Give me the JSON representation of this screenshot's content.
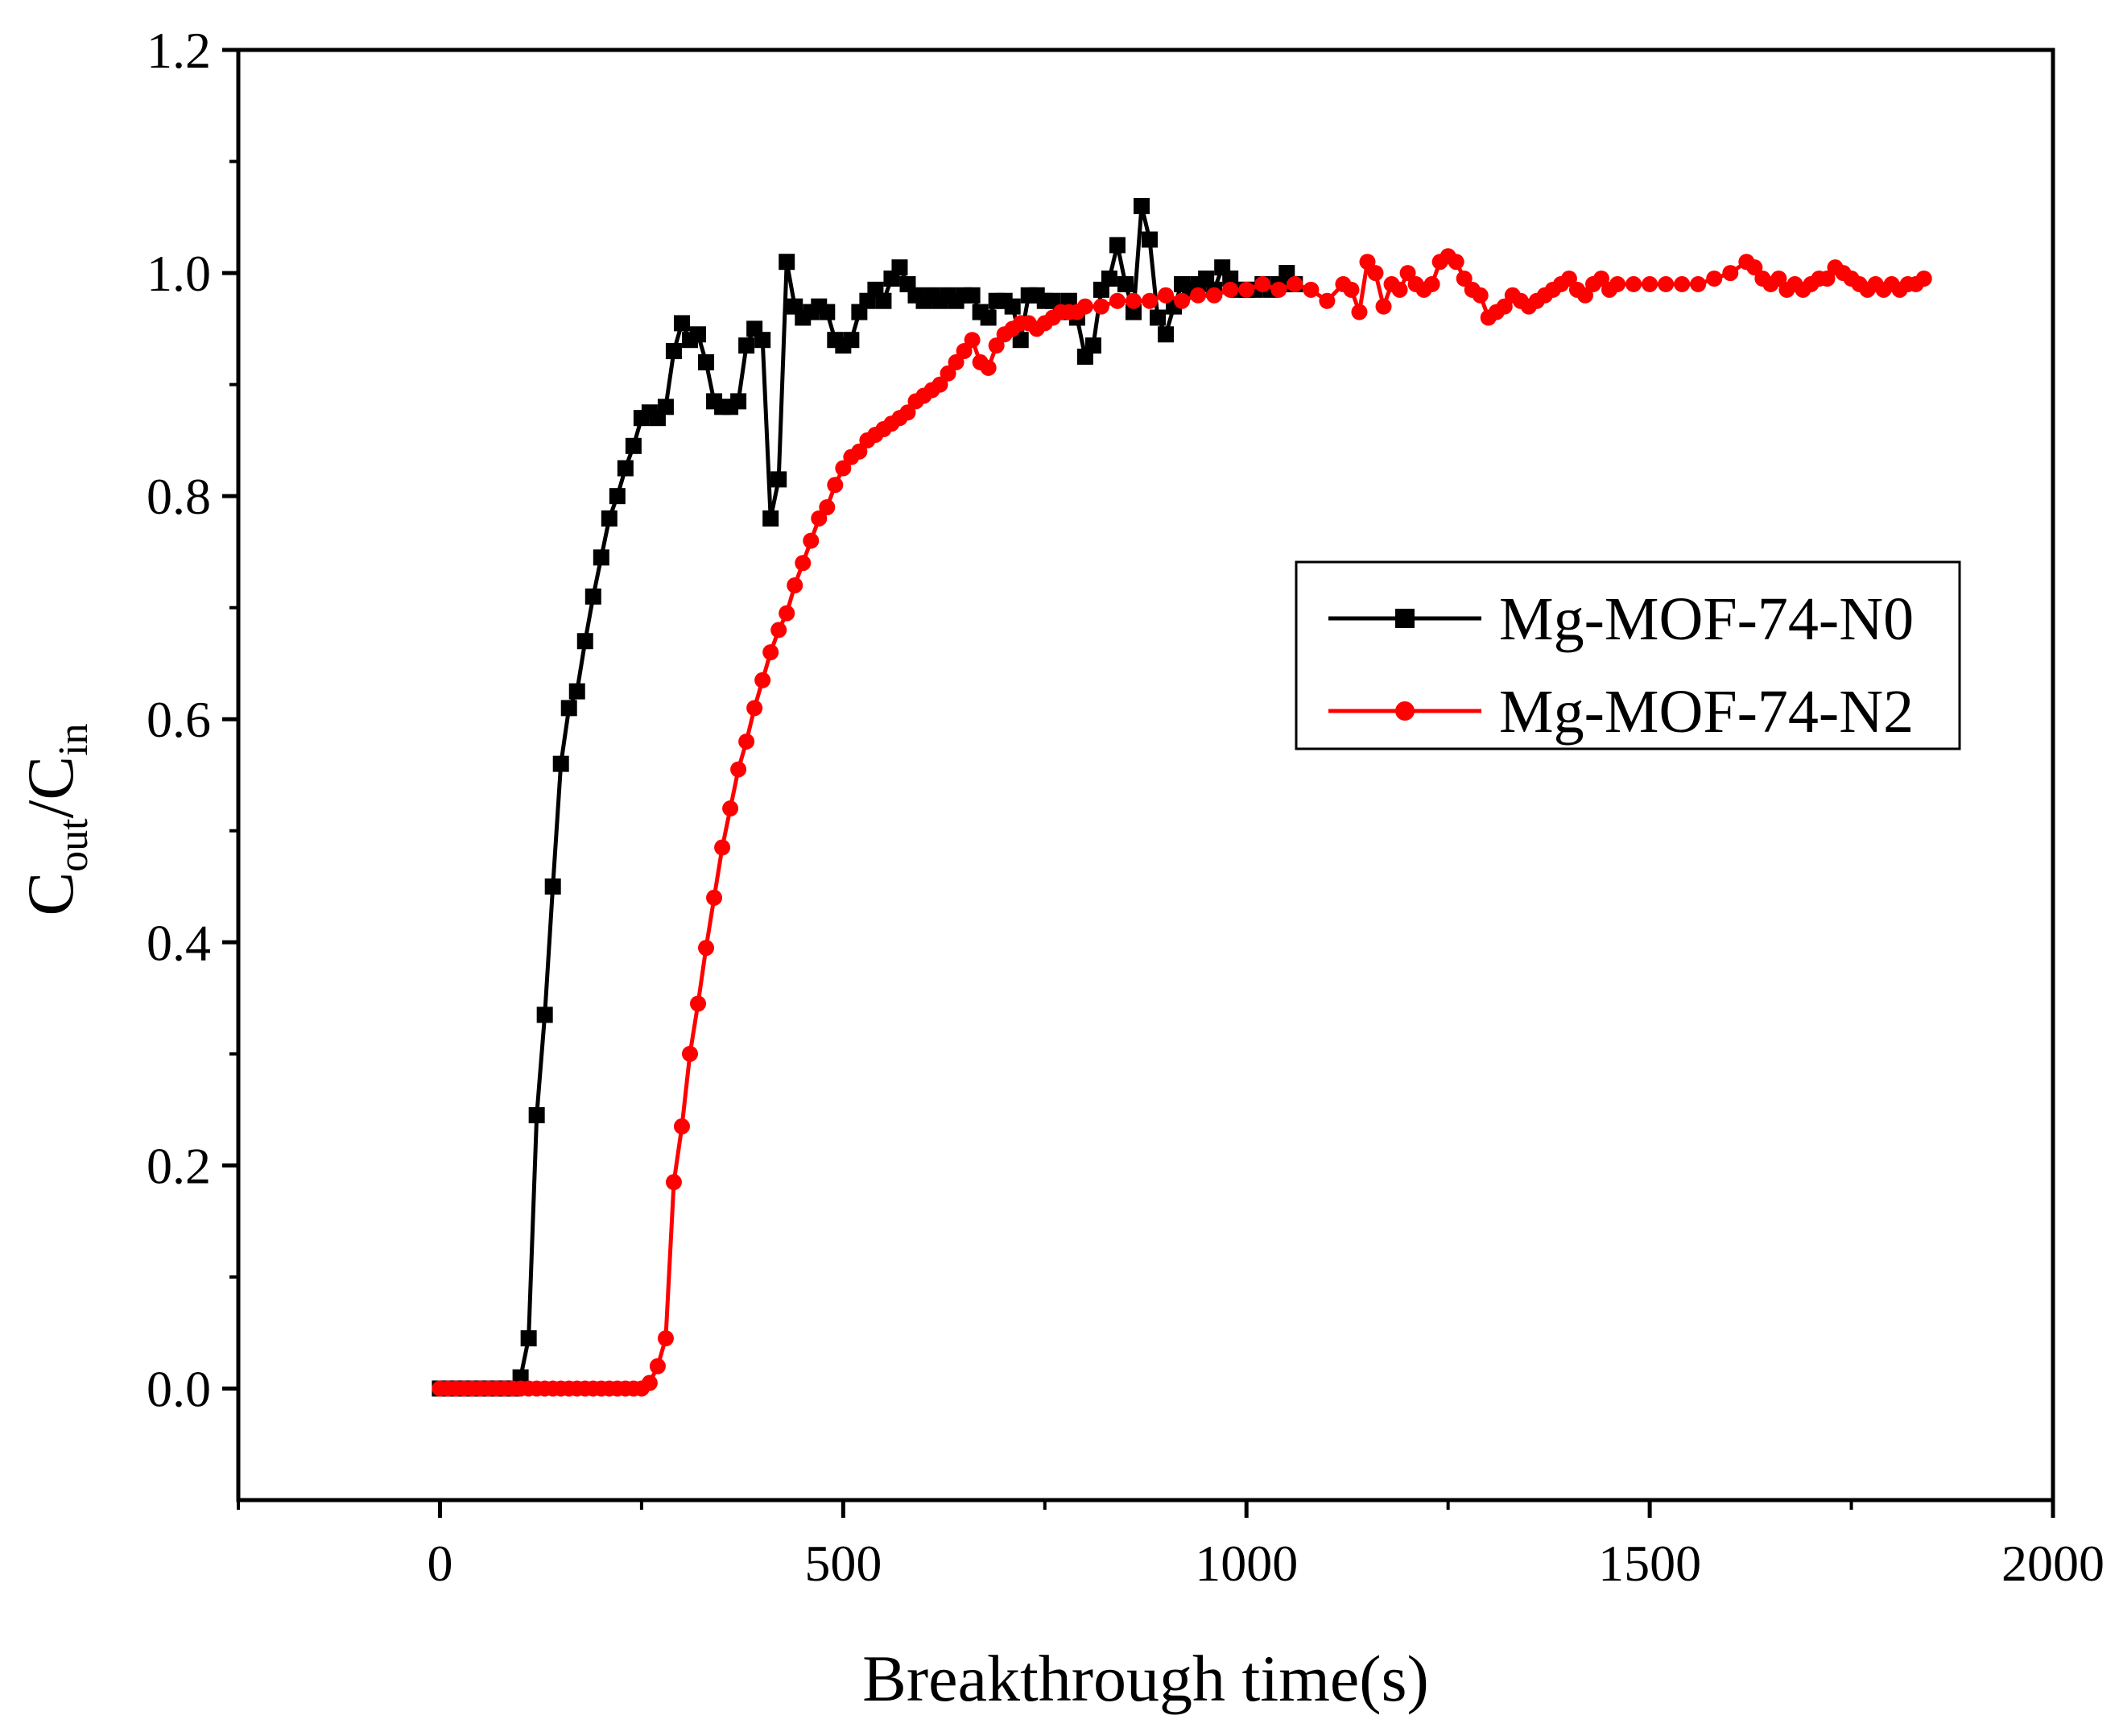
{
  "chart_data": {
    "type": "line",
    "title": "",
    "xlabel": "Breakthrough time(s)",
    "ylabel": {
      "main": "C",
      "sub1": "out",
      "slash": "/C",
      "sub2": "in"
    },
    "xlim": [
      -250,
      2000
    ],
    "ylim": [
      -0.1,
      1.2
    ],
    "xticks": [
      0,
      500,
      1000,
      1500,
      2000
    ],
    "yticks": [
      0.0,
      0.2,
      0.4,
      0.6,
      0.8,
      1.0,
      1.2
    ],
    "xtick_labels": [
      "0",
      "500",
      "1000",
      "1500",
      "2000"
    ],
    "ytick_labels": [
      "0.0",
      "0.2",
      "0.4",
      "0.6",
      "0.8",
      "1.0",
      "1.2"
    ],
    "grid": false,
    "legend_position": "center-right",
    "series": [
      {
        "name": "Mg-MOF-74-N0",
        "color": "#000000",
        "marker": "square",
        "points": [
          [
            0,
            0.0
          ],
          [
            10,
            0.0
          ],
          [
            20,
            0.0
          ],
          [
            30,
            0.0
          ],
          [
            40,
            0.0
          ],
          [
            50,
            0.0
          ],
          [
            60,
            0.0
          ],
          [
            70,
            0.0
          ],
          [
            80,
            0.0
          ],
          [
            90,
            0.0
          ],
          [
            100,
            0.01
          ],
          [
            110,
            0.045
          ],
          [
            120,
            0.245
          ],
          [
            130,
            0.335
          ],
          [
            140,
            0.45
          ],
          [
            150,
            0.56
          ],
          [
            160,
            0.61
          ],
          [
            170,
            0.625
          ],
          [
            180,
            0.67
          ],
          [
            190,
            0.71
          ],
          [
            200,
            0.745
          ],
          [
            210,
            0.78
          ],
          [
            220,
            0.8
          ],
          [
            230,
            0.825
          ],
          [
            240,
            0.845
          ],
          [
            250,
            0.87
          ],
          [
            260,
            0.875
          ],
          [
            270,
            0.87
          ],
          [
            280,
            0.88
          ],
          [
            290,
            0.93
          ],
          [
            300,
            0.955
          ],
          [
            310,
            0.94
          ],
          [
            320,
            0.945
          ],
          [
            330,
            0.92
          ],
          [
            340,
            0.885
          ],
          [
            350,
            0.88
          ],
          [
            360,
            0.88
          ],
          [
            370,
            0.885
          ],
          [
            380,
            0.935
          ],
          [
            390,
            0.95
          ],
          [
            400,
            0.94
          ],
          [
            410,
            0.78
          ],
          [
            420,
            0.815
          ],
          [
            430,
            1.01
          ],
          [
            440,
            0.97
          ],
          [
            450,
            0.96
          ],
          [
            460,
            0.965
          ],
          [
            470,
            0.97
          ],
          [
            480,
            0.965
          ],
          [
            490,
            0.94
          ],
          [
            500,
            0.935
          ],
          [
            510,
            0.94
          ],
          [
            520,
            0.965
          ],
          [
            530,
            0.975
          ],
          [
            540,
            0.985
          ],
          [
            550,
            0.975
          ],
          [
            560,
            0.995
          ],
          [
            570,
            1.005
          ],
          [
            580,
            0.99
          ],
          [
            590,
            0.98
          ],
          [
            600,
            0.975
          ],
          [
            610,
            0.98
          ],
          [
            620,
            0.975
          ],
          [
            630,
            0.98
          ],
          [
            640,
            0.975
          ],
          [
            650,
            0.98
          ],
          [
            660,
            0.98
          ],
          [
            670,
            0.965
          ],
          [
            680,
            0.96
          ],
          [
            690,
            0.975
          ],
          [
            700,
            0.975
          ],
          [
            710,
            0.97
          ],
          [
            720,
            0.94
          ],
          [
            730,
            0.98
          ],
          [
            740,
            0.98
          ],
          [
            750,
            0.975
          ],
          [
            760,
            0.975
          ],
          [
            770,
            0.965
          ],
          [
            780,
            0.975
          ],
          [
            790,
            0.96
          ],
          [
            800,
            0.925
          ],
          [
            810,
            0.935
          ],
          [
            820,
            0.985
          ],
          [
            830,
            0.995
          ],
          [
            840,
            1.025
          ],
          [
            850,
            0.99
          ],
          [
            860,
            0.965
          ],
          [
            870,
            1.06
          ],
          [
            880,
            1.03
          ],
          [
            890,
            0.96
          ],
          [
            900,
            0.945
          ],
          [
            910,
            0.97
          ],
          [
            920,
            0.99
          ],
          [
            930,
            0.985
          ],
          [
            940,
            0.99
          ],
          [
            950,
            0.995
          ],
          [
            960,
            0.985
          ],
          [
            970,
            1.005
          ],
          [
            980,
            0.995
          ],
          [
            990,
            0.985
          ],
          [
            1000,
            0.985
          ],
          [
            1010,
            0.985
          ],
          [
            1020,
            0.99
          ],
          [
            1030,
            0.985
          ],
          [
            1040,
            0.99
          ],
          [
            1050,
            1.0
          ],
          [
            1060,
            0.99
          ]
        ]
      },
      {
        "name": "Mg-MOF-74-N2",
        "color": "#ff0000",
        "marker": "circle",
        "points": [
          [
            0,
            0.0
          ],
          [
            10,
            0.0
          ],
          [
            20,
            0.0
          ],
          [
            30,
            0.0
          ],
          [
            40,
            0.0
          ],
          [
            50,
            0.0
          ],
          [
            60,
            0.0
          ],
          [
            70,
            0.0
          ],
          [
            80,
            0.0
          ],
          [
            90,
            0.0
          ],
          [
            100,
            0.0
          ],
          [
            110,
            0.0
          ],
          [
            120,
            0.0
          ],
          [
            130,
            0.0
          ],
          [
            140,
            0.0
          ],
          [
            150,
            0.0
          ],
          [
            160,
            0.0
          ],
          [
            170,
            0.0
          ],
          [
            180,
            0.0
          ],
          [
            190,
            0.0
          ],
          [
            200,
            0.0
          ],
          [
            210,
            0.0
          ],
          [
            220,
            0.0
          ],
          [
            230,
            0.0
          ],
          [
            240,
            0.0
          ],
          [
            250,
            0.0
          ],
          [
            260,
            0.005
          ],
          [
            270,
            0.02
          ],
          [
            280,
            0.045
          ],
          [
            290,
            0.185
          ],
          [
            300,
            0.235
          ],
          [
            310,
            0.3
          ],
          [
            320,
            0.345
          ],
          [
            330,
            0.395
          ],
          [
            340,
            0.44
          ],
          [
            350,
            0.485
          ],
          [
            360,
            0.52
          ],
          [
            370,
            0.555
          ],
          [
            380,
            0.58
          ],
          [
            390,
            0.61
          ],
          [
            400,
            0.635
          ],
          [
            410,
            0.66
          ],
          [
            420,
            0.68
          ],
          [
            430,
            0.695
          ],
          [
            440,
            0.72
          ],
          [
            450,
            0.74
          ],
          [
            460,
            0.76
          ],
          [
            470,
            0.78
          ],
          [
            480,
            0.79
          ],
          [
            490,
            0.81
          ],
          [
            500,
            0.825
          ],
          [
            510,
            0.835
          ],
          [
            520,
            0.84
          ],
          [
            530,
            0.85
          ],
          [
            540,
            0.855
          ],
          [
            550,
            0.86
          ],
          [
            560,
            0.865
          ],
          [
            570,
            0.87
          ],
          [
            580,
            0.875
          ],
          [
            590,
            0.885
          ],
          [
            600,
            0.89
          ],
          [
            610,
            0.895
          ],
          [
            620,
            0.9
          ],
          [
            630,
            0.91
          ],
          [
            640,
            0.92
          ],
          [
            650,
            0.93
          ],
          [
            660,
            0.94
          ],
          [
            670,
            0.92
          ],
          [
            680,
            0.915
          ],
          [
            690,
            0.935
          ],
          [
            700,
            0.945
          ],
          [
            710,
            0.95
          ],
          [
            720,
            0.955
          ],
          [
            730,
            0.955
          ],
          [
            740,
            0.95
          ],
          [
            750,
            0.955
          ],
          [
            760,
            0.96
          ],
          [
            770,
            0.965
          ],
          [
            780,
            0.965
          ],
          [
            790,
            0.965
          ],
          [
            800,
            0.97
          ],
          [
            820,
            0.97
          ],
          [
            840,
            0.975
          ],
          [
            860,
            0.975
          ],
          [
            880,
            0.975
          ],
          [
            900,
            0.98
          ],
          [
            920,
            0.975
          ],
          [
            940,
            0.98
          ],
          [
            960,
            0.98
          ],
          [
            980,
            0.985
          ],
          [
            1000,
            0.985
          ],
          [
            1020,
            0.99
          ],
          [
            1040,
            0.985
          ],
          [
            1060,
            0.99
          ],
          [
            1080,
            0.985
          ],
          [
            1100,
            0.975
          ],
          [
            1120,
            0.99
          ],
          [
            1130,
            0.985
          ],
          [
            1140,
            0.965
          ],
          [
            1150,
            1.01
          ],
          [
            1160,
            1.0
          ],
          [
            1170,
            0.97
          ],
          [
            1180,
            0.99
          ],
          [
            1190,
            0.985
          ],
          [
            1200,
            1.0
          ],
          [
            1210,
            0.99
          ],
          [
            1220,
            0.985
          ],
          [
            1230,
            0.99
          ],
          [
            1240,
            1.01
          ],
          [
            1250,
            1.015
          ],
          [
            1260,
            1.01
          ],
          [
            1270,
            0.995
          ],
          [
            1280,
            0.985
          ],
          [
            1290,
            0.98
          ],
          [
            1300,
            0.96
          ],
          [
            1310,
            0.965
          ],
          [
            1320,
            0.97
          ],
          [
            1330,
            0.98
          ],
          [
            1340,
            0.975
          ],
          [
            1350,
            0.97
          ],
          [
            1360,
            0.975
          ],
          [
            1370,
            0.98
          ],
          [
            1380,
            0.985
          ],
          [
            1390,
            0.99
          ],
          [
            1400,
            0.995
          ],
          [
            1410,
            0.985
          ],
          [
            1420,
            0.98
          ],
          [
            1430,
            0.99
          ],
          [
            1440,
            0.995
          ],
          [
            1450,
            0.985
          ],
          [
            1460,
            0.99
          ],
          [
            1480,
            0.99
          ],
          [
            1500,
            0.99
          ],
          [
            1520,
            0.99
          ],
          [
            1540,
            0.99
          ],
          [
            1560,
            0.99
          ],
          [
            1580,
            0.995
          ],
          [
            1600,
            1.0
          ],
          [
            1620,
            1.01
          ],
          [
            1630,
            1.005
          ],
          [
            1640,
            0.995
          ],
          [
            1650,
            0.99
          ],
          [
            1660,
            0.995
          ],
          [
            1670,
            0.985
          ],
          [
            1680,
            0.99
          ],
          [
            1690,
            0.985
          ],
          [
            1700,
            0.99
          ],
          [
            1710,
            0.995
          ],
          [
            1720,
            0.995
          ],
          [
            1730,
            1.005
          ],
          [
            1740,
            1.0
          ],
          [
            1750,
            0.995
          ],
          [
            1760,
            0.99
          ],
          [
            1770,
            0.985
          ],
          [
            1780,
            0.99
          ],
          [
            1790,
            0.985
          ],
          [
            1800,
            0.99
          ],
          [
            1810,
            0.985
          ],
          [
            1820,
            0.99
          ],
          [
            1830,
            0.99
          ],
          [
            1840,
            0.995
          ]
        ]
      }
    ]
  }
}
